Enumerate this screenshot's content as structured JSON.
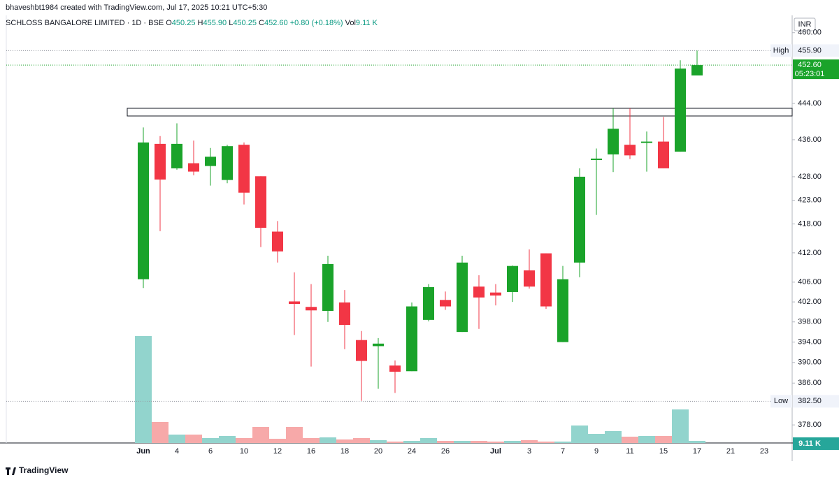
{
  "header": {
    "attribution": "bhaveshbt1984 created with TradingView.com, Jul 17, 2025 10:21 UTC+5:30"
  },
  "chart_data": {
    "type": "candlestick",
    "title": "SCHLOSS BANGALORE LIMITED · 1D · BSE",
    "ohlc_legend": [
      {
        "label": "O",
        "value": "450.25"
      },
      {
        "label": "H",
        "value": "455.90"
      },
      {
        "label": "L",
        "value": "450.25"
      },
      {
        "label": "C",
        "value": "452.60"
      }
    ],
    "change_label": "+0.80 (+0.18%)",
    "volume_name": "Vol",
    "volume_value_label": "9.11 K",
    "currency": "INR",
    "categories": [
      "Jun",
      null,
      "4",
      null,
      "6",
      null,
      "10",
      null,
      "12",
      null,
      "16",
      null,
      "18",
      null,
      "20",
      null,
      "24",
      null,
      "26",
      null,
      null,
      "Jul",
      null,
      "3",
      null,
      "7",
      null,
      "9",
      null,
      "11",
      null,
      "15",
      null,
      "17",
      null,
      "21",
      null,
      "23"
    ],
    "open": [
      406.6,
      435.1,
      429.8,
      430.9,
      430.3,
      427.3,
      434.9,
      428.1,
      416.4,
      402.1,
      401.0,
      400.2,
      401.9,
      394.4,
      393.2,
      389.4,
      388.3,
      398.4,
      402.4,
      396.0,
      405.1,
      403.9,
      404.0,
      408.4,
      411.9,
      394.0,
      410.0,
      431.6,
      432.8,
      434.9,
      435.5,
      435.6,
      433.4,
      450.25,
      null,
      null,
      null,
      null
    ],
    "high": [
      438.7,
      436.8,
      439.6,
      435.8,
      434.2,
      434.9,
      435.4,
      428.1,
      418.6,
      408.0,
      405.6,
      411.4,
      404.4,
      396.2,
      394.8,
      390.4,
      401.9,
      405.6,
      404.1,
      411.4,
      407.4,
      405.6,
      409.4,
      412.7,
      411.9,
      409.3,
      429.8,
      434.1,
      442.9,
      442.9,
      437.8,
      441.0,
      453.7,
      455.9,
      null,
      null,
      null,
      null
    ],
    "low": [
      404.8,
      416.5,
      429.5,
      428.3,
      426.1,
      426.6,
      422.1,
      413.2,
      410.0,
      395.4,
      389.2,
      398.0,
      392.6,
      382.6,
      384.9,
      384.1,
      388.3,
      398.1,
      400.4,
      396.0,
      396.6,
      401.3,
      402.0,
      404.7,
      400.6,
      394.0,
      407.0,
      419.9,
      429.0,
      431.8,
      429.1,
      429.8,
      433.4,
      450.25,
      null,
      null,
      null,
      null
    ],
    "close": [
      435.4,
      427.4,
      435.1,
      429.1,
      432.3,
      434.6,
      424.6,
      417.2,
      412.3,
      401.6,
      400.3,
      409.7,
      397.4,
      390.3,
      393.7,
      388.2,
      401.1,
      405.0,
      401.1,
      410.0,
      402.9,
      403.3,
      409.3,
      405.1,
      401.1,
      406.6,
      428.0,
      431.9,
      438.4,
      432.6,
      435.6,
      429.8,
      451.8,
      452.6,
      null,
      null,
      null,
      null
    ],
    "volume": [
      459000,
      90000,
      36000,
      36000,
      21000,
      30000,
      21000,
      69000,
      18000,
      69000,
      21000,
      24000,
      15000,
      21000,
      12000,
      6000,
      9000,
      21000,
      9000,
      9000,
      9000,
      6000,
      9000,
      12000,
      6000,
      6000,
      75000,
      39000,
      51000,
      27000,
      30000,
      30000,
      144000,
      9110,
      null,
      null,
      null,
      null
    ],
    "ylim": [
      374.6,
      464.0
    ],
    "log_scale": true,
    "grid": false,
    "yticks": [
      {
        "value": 460,
        "label": "460.00"
      },
      {
        "value": 444,
        "label": "444.00"
      },
      {
        "value": 436,
        "label": "436.00"
      },
      {
        "value": 428,
        "label": "428.00"
      },
      {
        "value": 423,
        "label": "423.00"
      },
      {
        "value": 418,
        "label": "418.00"
      },
      {
        "value": 412,
        "label": "412.00"
      },
      {
        "value": 406,
        "label": "406.00"
      },
      {
        "value": 402,
        "label": "402.00"
      },
      {
        "value": 398,
        "label": "398.00"
      },
      {
        "value": 394,
        "label": "394.00"
      },
      {
        "value": 390,
        "label": "390.00"
      },
      {
        "value": 386,
        "label": "386.00"
      },
      {
        "value": 378,
        "label": "378.00"
      }
    ],
    "price_lines": [
      {
        "label": "High",
        "value": 455.9,
        "value_label": "455.90"
      },
      {
        "label": "Low",
        "value": 382.5,
        "value_label": "382.50"
      }
    ],
    "last_price": {
      "value": 452.6,
      "value_label": "452.60",
      "countdown": "05:23:01"
    },
    "up_color": "#1aa32a",
    "down_color": "#f23645",
    "volume_up_color": "#92d4cd",
    "volume_down_color": "#f7a9a9"
  },
  "footer": {
    "brand": "TradingView"
  }
}
